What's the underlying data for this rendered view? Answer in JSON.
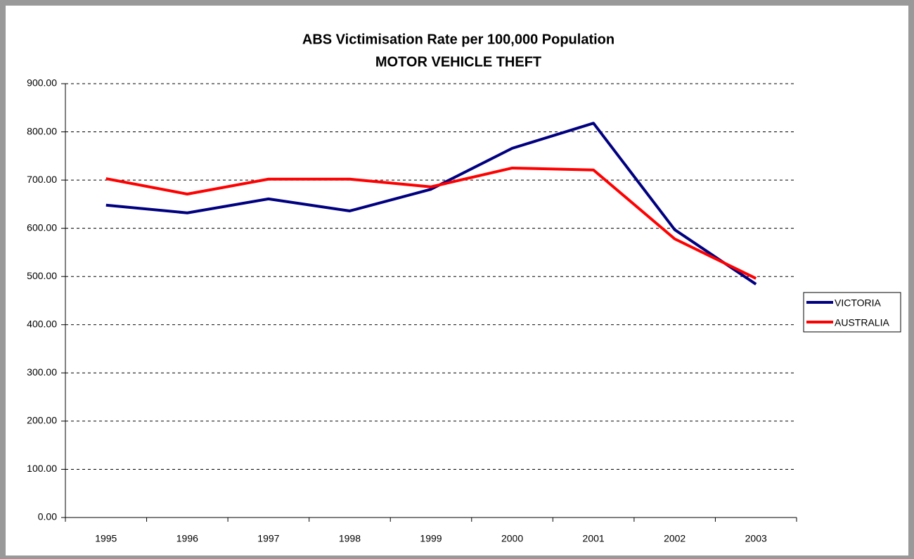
{
  "chart_data": {
    "type": "line",
    "title": "ABS Victimisation Rate per 100,000 Population",
    "subtitle": "MOTOR VEHICLE THEFT",
    "categories": [
      "1995",
      "1996",
      "1997",
      "1998",
      "1999",
      "2000",
      "2001",
      "2002",
      "2003"
    ],
    "series": [
      {
        "name": "VICTORIA",
        "color": "#000080",
        "values": [
          648,
          632,
          661,
          636,
          681,
          766,
          818,
          597,
          484
        ]
      },
      {
        "name": "AUSTRALIA",
        "color": "#ff0000",
        "values": [
          703,
          671,
          702,
          702,
          686,
          725,
          721,
          578,
          496
        ]
      }
    ],
    "ylim": [
      0,
      900
    ],
    "yticks": [
      {
        "value": 0,
        "label": "0.00"
      },
      {
        "value": 100,
        "label": "100.00"
      },
      {
        "value": 200,
        "label": "200.00"
      },
      {
        "value": 300,
        "label": "300.00"
      },
      {
        "value": 400,
        "label": "400.00"
      },
      {
        "value": 500,
        "label": "500.00"
      },
      {
        "value": 600,
        "label": "600.00"
      },
      {
        "value": 700,
        "label": "700.00"
      },
      {
        "value": 800,
        "label": "800.00"
      },
      {
        "value": 900,
        "label": "900.00"
      }
    ],
    "grid": true,
    "legend": "right"
  }
}
